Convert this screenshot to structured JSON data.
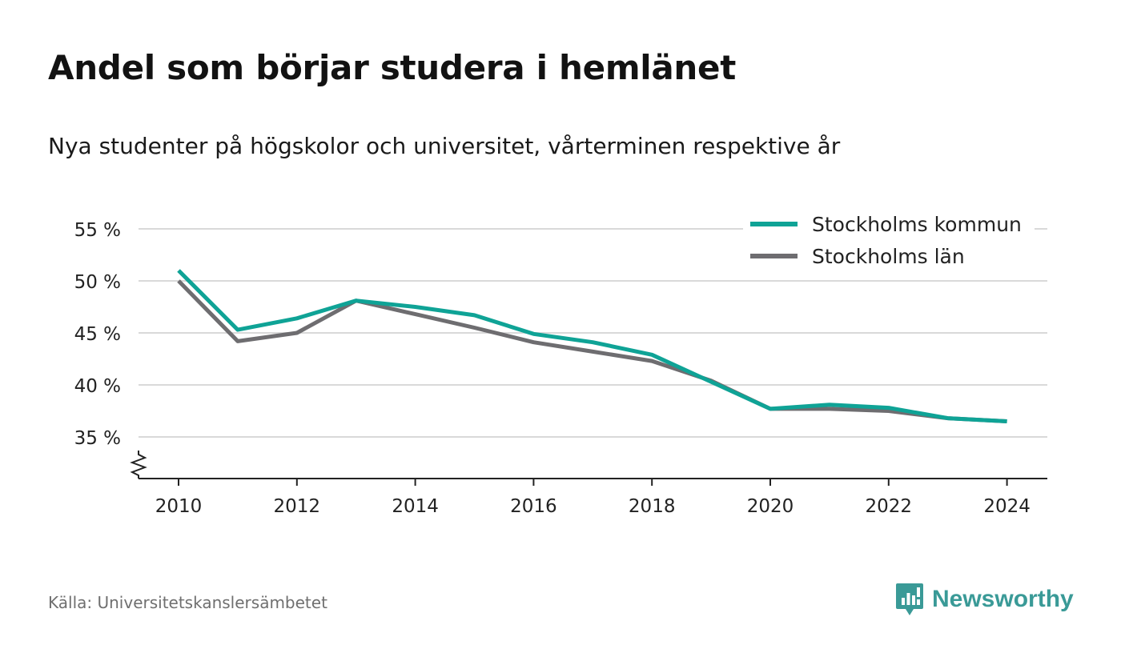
{
  "title": "Andel som börjar studera i hemlänet",
  "subtitle": "Nya studenter på högskolor och universitet, vårterminen respektive år",
  "source": "Källa: Universitetskanslersämbetet",
  "brand": {
    "name": "Newsworthy",
    "icon": "newsworthy-logo-icon",
    "color": "#3a9a97"
  },
  "chart_data": {
    "type": "line",
    "x": [
      2010,
      2011,
      2012,
      2013,
      2014,
      2015,
      2016,
      2017,
      2018,
      2019,
      2020,
      2021,
      2022,
      2023,
      2024
    ],
    "x_ticks": [
      2010,
      2012,
      2014,
      2016,
      2018,
      2020,
      2022,
      2024
    ],
    "x_tick_labels": [
      "2010",
      "2012",
      "2014",
      "2016",
      "2018",
      "2020",
      "2022",
      "2024"
    ],
    "y_ticks": [
      35,
      40,
      45,
      50,
      55
    ],
    "y_tick_labels": [
      "35 %",
      "40 %",
      "45 %",
      "50 %",
      "55 %"
    ],
    "ylim": [
      31,
      55
    ],
    "xlim": [
      2009.3,
      2024.7
    ],
    "grid": true,
    "axis_break": true,
    "legend_position": "top-right",
    "series": [
      {
        "name": "Stockholms kommun",
        "color": "#0fa396",
        "values": [
          51.0,
          45.3,
          46.4,
          48.1,
          47.5,
          46.7,
          44.9,
          44.1,
          42.9,
          40.3,
          37.7,
          38.1,
          37.8,
          36.8,
          36.5
        ]
      },
      {
        "name": "Stockholms län",
        "color": "#6e6d70",
        "values": [
          50.0,
          44.2,
          45.0,
          48.1,
          46.8,
          45.5,
          44.1,
          43.2,
          42.3,
          40.4,
          37.7,
          37.7,
          37.5,
          36.8,
          36.5
        ]
      }
    ]
  }
}
